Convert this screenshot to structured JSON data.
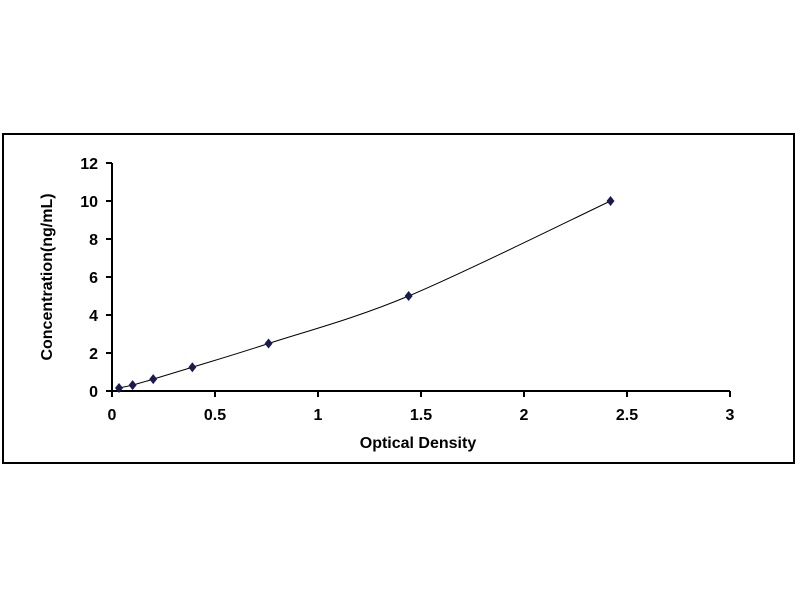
{
  "chart_data": {
    "type": "scatter",
    "xlabel": "Optical Density",
    "ylabel": "Concentration(ng/mL)",
    "xlim": [
      0,
      3
    ],
    "ylim": [
      0,
      12
    ],
    "xticks": [
      "0",
      "0.5",
      "1",
      "1.5",
      "2",
      "2.5",
      "3"
    ],
    "yticks": [
      "0",
      "2",
      "4",
      "6",
      "8",
      "10",
      "12"
    ],
    "grid": false,
    "marker_color": "#1a1a4e",
    "line_color": "#000000",
    "series": [
      {
        "x": [
          0.034,
          0.1,
          0.2,
          0.39,
          0.76,
          1.44,
          2.42
        ],
        "y": [
          0.156,
          0.312,
          0.625,
          1.25,
          2.5,
          5,
          10
        ]
      }
    ]
  }
}
